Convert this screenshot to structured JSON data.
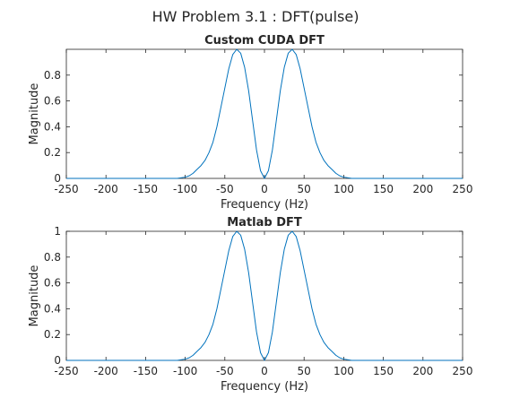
{
  "figure": {
    "suptitle": "HW Problem 3.1 : DFT(pulse)"
  },
  "chart_data": [
    {
      "type": "line",
      "title": "Custom CUDA DFT",
      "xlabel": "Frequency (Hz)",
      "ylabel": "Magnitude",
      "xlim": [
        -250,
        250
      ],
      "ylim": [
        0,
        1
      ],
      "xticks": [
        "-250",
        "-200",
        "-150",
        "-100",
        "-50",
        "0",
        "50",
        "100",
        "150",
        "200",
        "250"
      ],
      "yticks": [
        "0",
        "0.2",
        "0.4",
        "0.6",
        "0.8"
      ],
      "grid": false,
      "series": [
        {
          "color": "#0072BD",
          "x": [
            -250,
            -200,
            -150,
            -110,
            -100,
            -95,
            -90,
            -85,
            -80,
            -75,
            -70,
            -65,
            -60,
            -55,
            -50,
            -45,
            -40,
            -35,
            -30,
            -25,
            -20,
            -15,
            -10,
            -5,
            0,
            5,
            10,
            15,
            20,
            25,
            30,
            35,
            40,
            45,
            50,
            55,
            60,
            65,
            70,
            75,
            80,
            85,
            90,
            95,
            100,
            110,
            150,
            200,
            250
          ],
          "y": [
            0,
            0,
            0,
            0,
            0.01,
            0.02,
            0.04,
            0.07,
            0.1,
            0.14,
            0.2,
            0.28,
            0.4,
            0.55,
            0.7,
            0.85,
            0.96,
            1.0,
            0.97,
            0.86,
            0.68,
            0.45,
            0.22,
            0.06,
            0.0,
            0.06,
            0.22,
            0.45,
            0.68,
            0.86,
            0.97,
            1.0,
            0.96,
            0.85,
            0.7,
            0.55,
            0.4,
            0.28,
            0.2,
            0.14,
            0.1,
            0.07,
            0.04,
            0.02,
            0.01,
            0,
            0,
            0,
            0
          ]
        }
      ]
    },
    {
      "type": "line",
      "title": "Matlab DFT",
      "xlabel": "Frequency (Hz)",
      "ylabel": "Magnitude",
      "xlim": [
        -250,
        250
      ],
      "ylim": [
        0,
        1
      ],
      "xticks": [
        "-250",
        "-200",
        "-150",
        "-100",
        "-50",
        "0",
        "50",
        "100",
        "150",
        "200",
        "250"
      ],
      "yticks": [
        "0",
        "0.2",
        "0.4",
        "0.6",
        "0.8",
        "1"
      ],
      "grid": false,
      "series": [
        {
          "color": "#0072BD",
          "x": [
            -250,
            -200,
            -150,
            -110,
            -100,
            -95,
            -90,
            -85,
            -80,
            -75,
            -70,
            -65,
            -60,
            -55,
            -50,
            -45,
            -40,
            -35,
            -30,
            -25,
            -20,
            -15,
            -10,
            -5,
            0,
            5,
            10,
            15,
            20,
            25,
            30,
            35,
            40,
            45,
            50,
            55,
            60,
            65,
            70,
            75,
            80,
            85,
            90,
            95,
            100,
            110,
            150,
            200,
            250
          ],
          "y": [
            0,
            0,
            0,
            0,
            0.01,
            0.02,
            0.04,
            0.07,
            0.1,
            0.14,
            0.2,
            0.28,
            0.4,
            0.55,
            0.7,
            0.85,
            0.96,
            1.0,
            0.97,
            0.86,
            0.68,
            0.45,
            0.22,
            0.06,
            0.0,
            0.06,
            0.22,
            0.45,
            0.68,
            0.86,
            0.97,
            1.0,
            0.96,
            0.85,
            0.7,
            0.55,
            0.4,
            0.28,
            0.2,
            0.14,
            0.1,
            0.07,
            0.04,
            0.02,
            0.01,
            0,
            0,
            0,
            0
          ]
        }
      ]
    }
  ]
}
